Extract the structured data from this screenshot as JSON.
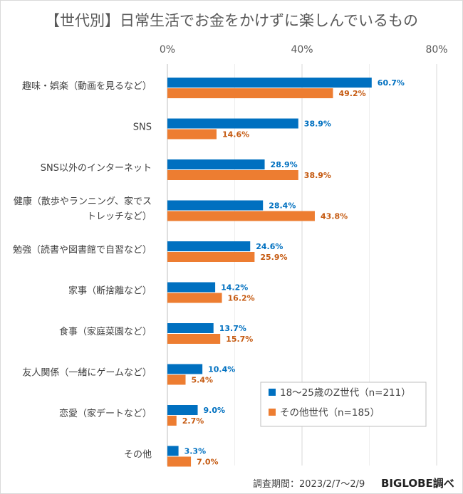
{
  "chart_data": {
    "type": "bar",
    "orientation": "horizontal",
    "title": "【世代別】日常生活でお金をかけずに楽しんでいるもの",
    "categories": [
      [
        "趣味・娯楽（動画を見るなど）"
      ],
      [
        "SNS"
      ],
      [
        "SNS以外のインターネット"
      ],
      [
        "健康（散歩やランニング、家でス",
        "トレッチなど）"
      ],
      [
        "勉強（読書や図書館で自習など）"
      ],
      [
        "家事（断捨離など）"
      ],
      [
        "食事（家庭菜園など）"
      ],
      [
        "友人関係（一緒にゲームなど）"
      ],
      [
        "恋愛（家デートなど）"
      ],
      [
        "その他"
      ]
    ],
    "series": [
      {
        "name": "18～25歳のZ世代（n=211）",
        "color": "#0070c0",
        "values": [
          60.7,
          38.9,
          28.9,
          28.4,
          24.6,
          14.2,
          13.7,
          10.4,
          9.0,
          3.3
        ],
        "labels": [
          "60.7%",
          "38.9%",
          "28.9%",
          "28.4%",
          "24.6%",
          "14.2%",
          "13.7%",
          "10.4%",
          "9.0%",
          "3.3%"
        ]
      },
      {
        "name": "その他世代（n=185）",
        "color": "#ed7d31",
        "values": [
          49.2,
          14.6,
          38.9,
          43.8,
          25.9,
          16.2,
          15.7,
          5.4,
          2.7,
          7.0
        ],
        "labels": [
          "49.2%",
          "14.6%",
          "38.9%",
          "43.8%",
          "25.9%",
          "16.2%",
          "15.7%",
          "5.4%",
          "2.7%",
          "7.0%"
        ]
      }
    ],
    "xlim": [
      0,
      80
    ],
    "xticks": [
      "0%",
      "40%",
      "80%"
    ],
    "grid": true,
    "legend_position": "bottom-right",
    "label_colors": [
      "#0070c0",
      "#c55a11"
    ]
  },
  "footer": {
    "period": "調査期間：2023/2/7～2/9",
    "brand": "BIGLOBE調べ"
  }
}
